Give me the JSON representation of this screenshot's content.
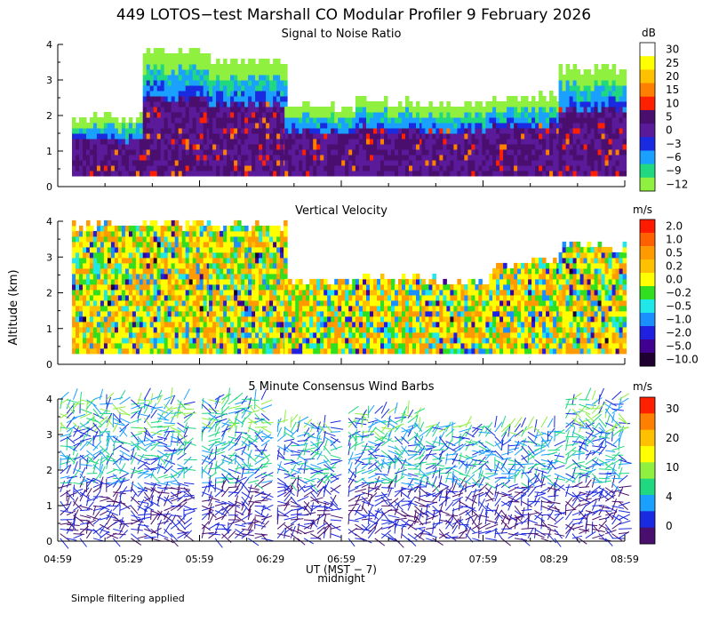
{
  "title": "449 LOTOS−test Marshall CO Modular Profiler  9 February 2026",
  "footnote": "Simple filtering applied",
  "ylabel": "Altitude (km)",
  "xlabel": "UT  (MST − 7)",
  "xlabel_note": "midnight",
  "x_ticks": [
    "04:59",
    "05:29",
    "05:59",
    "06:29",
    "06:59",
    "07:29",
    "07:59",
    "08:29",
    "08:59"
  ],
  "y_ticks": [
    "0",
    "1",
    "2",
    "3",
    "4"
  ],
  "chart_data": [
    {
      "type": "heatmap",
      "title": "Signal to Noise Ratio",
      "unit": "dB",
      "ylim": [
        0,
        4
      ],
      "colorbar_ticks": [
        "30",
        "25",
        "20",
        "15",
        "10",
        "5",
        "0",
        "−3",
        "−6",
        "−9",
        "−12"
      ],
      "colors": [
        "#ffffff",
        "#ffff00",
        "#ffc000",
        "#ff8000",
        "#ff2000",
        "#4a0f6e",
        "#5a1a9a",
        "#1a2ae0",
        "#1aa0ff",
        "#20d880",
        "#90f040"
      ],
      "segments": [
        [
          0.3,
          1.8,
          0.3,
          2.0
        ],
        [
          1.8,
          3.2,
          0.3,
          3.9
        ],
        [
          3.2,
          4.8,
          0.3,
          3.6
        ],
        [
          4.8,
          6.3,
          0.3,
          2.3
        ],
        [
          6.3,
          7.7,
          0.3,
          2.5
        ],
        [
          7.7,
          9.2,
          0.3,
          2.4
        ],
        [
          9.2,
          10.6,
          0.3,
          2.6
        ],
        [
          10.6,
          12.0,
          0.3,
          3.4
        ]
      ]
    },
    {
      "type": "heatmap",
      "title": "Vertical Velocity",
      "unit": "m/s",
      "ylim": [
        0,
        4
      ],
      "colorbar_ticks": [
        "2.0",
        "1.0",
        "0.5",
        "0.2",
        "0.0",
        "−0.2",
        "−0.5",
        "−1.0",
        "−2.0",
        "−5.0",
        "−10.0"
      ],
      "colors": [
        "#ff1a00",
        "#ff6000",
        "#ff9a00",
        "#ffc000",
        "#ffff00",
        "#30e020",
        "#20e8e8",
        "#1a90ff",
        "#2020e0",
        "#400090",
        "#200030"
      ],
      "segments": [
        [
          0.3,
          1.8,
          0.3,
          4.0
        ],
        [
          1.8,
          3.2,
          0.3,
          4.0
        ],
        [
          3.2,
          4.8,
          0.3,
          4.0
        ],
        [
          4.8,
          6.3,
          0.3,
          2.4
        ],
        [
          6.3,
          7.7,
          0.3,
          2.5
        ],
        [
          7.7,
          9.2,
          0.3,
          2.4
        ],
        [
          9.2,
          10.6,
          0.3,
          2.9
        ],
        [
          10.6,
          12.0,
          0.3,
          3.4
        ]
      ]
    },
    {
      "type": "scatter",
      "title": "5 Minute Consensus Wind Barbs",
      "unit": "m/s",
      "ylim": [
        0,
        4
      ],
      "colorbar_ticks": [
        "30",
        "20",
        "10",
        "4",
        "0"
      ],
      "colors": [
        "#ff2000",
        "#ff8000",
        "#ffc000",
        "#ffff00",
        "#90f040",
        "#20d880",
        "#1aa0ff",
        "#1a2ae0",
        "#4a0f6e"
      ],
      "segments": [
        [
          0.0,
          1.4,
          0.0,
          4.0
        ],
        [
          1.5,
          2.8,
          0.0,
          4.0
        ],
        [
          3.0,
          4.4,
          0.0,
          4.0
        ],
        [
          4.6,
          5.9,
          0.0,
          3.4
        ],
        [
          6.1,
          7.6,
          0.0,
          3.6
        ],
        [
          7.6,
          9.1,
          0.0,
          3.2
        ],
        [
          9.2,
          10.6,
          0.0,
          3.2
        ],
        [
          10.7,
          12.0,
          0.0,
          4.0
        ]
      ]
    }
  ]
}
